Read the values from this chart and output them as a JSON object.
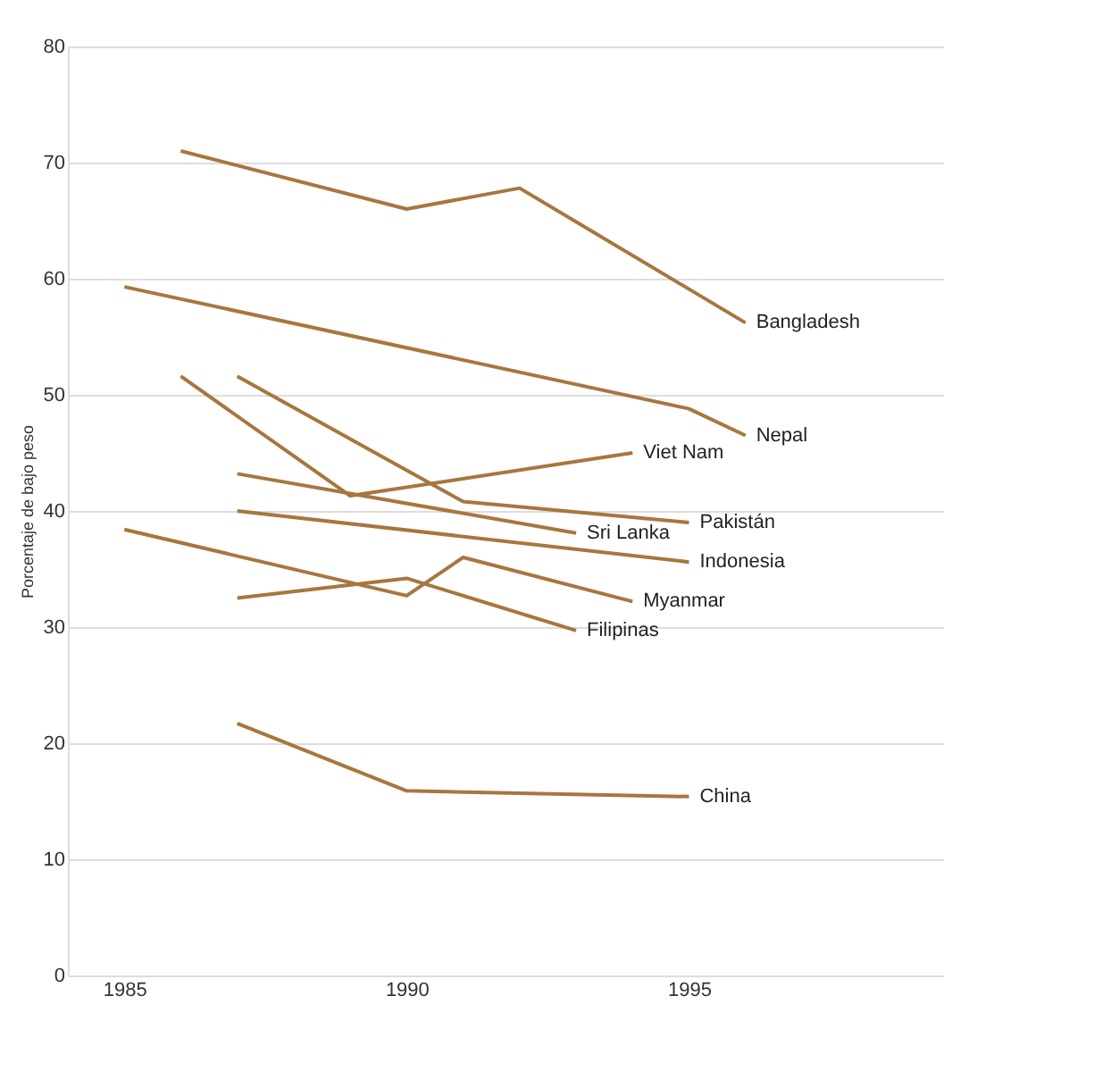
{
  "chart_data": {
    "type": "line",
    "ylabel": "Porcentaje de bajo peso",
    "xlim": [
      1984,
      1999.5
    ],
    "xticks": [
      1985,
      1990,
      1995
    ],
    "ylim": [
      0,
      80
    ],
    "yticks": [
      0,
      10,
      20,
      30,
      40,
      50,
      60,
      70,
      80
    ],
    "grid": "y",
    "marker": "none",
    "line_style": "solid",
    "series": [
      {
        "name": "Bangladesh",
        "color": "#a8763e",
        "x": [
          1986,
          1990,
          1992,
          1996
        ],
        "values": [
          71.0,
          66.0,
          67.8,
          56.2
        ]
      },
      {
        "name": "Nepal",
        "color": "#a8763e",
        "x": [
          1985,
          1995,
          1996
        ],
        "values": [
          59.3,
          48.8,
          46.5
        ]
      },
      {
        "name": "Pakistán",
        "color": "#a8763e",
        "x": [
          1987,
          1991,
          1995
        ],
        "values": [
          51.6,
          40.8,
          39.0
        ]
      },
      {
        "name": "Viet Nam",
        "color": "#a8763e",
        "x": [
          1986,
          1989,
          1994
        ],
        "values": [
          51.6,
          41.3,
          45.0
        ]
      },
      {
        "name": "Sri Lanka",
        "color": "#a8763e",
        "x": [
          1987,
          1993
        ],
        "values": [
          43.2,
          38.1
        ]
      },
      {
        "name": "Indonesia",
        "color": "#a8763e",
        "x": [
          1987,
          1995
        ],
        "values": [
          40.0,
          35.6
        ]
      },
      {
        "name": "Myanmar",
        "color": "#a8763e",
        "x": [
          1985,
          1990,
          1991,
          1994
        ],
        "values": [
          38.4,
          32.7,
          36.0,
          32.2
        ]
      },
      {
        "name": "Filipinas",
        "color": "#a8763e",
        "x": [
          1987,
          1990,
          1993
        ],
        "values": [
          32.5,
          34.2,
          29.7
        ]
      },
      {
        "name": "China",
        "color": "#a8763e",
        "x": [
          1987,
          1990,
          1995
        ],
        "values": [
          21.7,
          15.9,
          15.4
        ]
      }
    ]
  }
}
